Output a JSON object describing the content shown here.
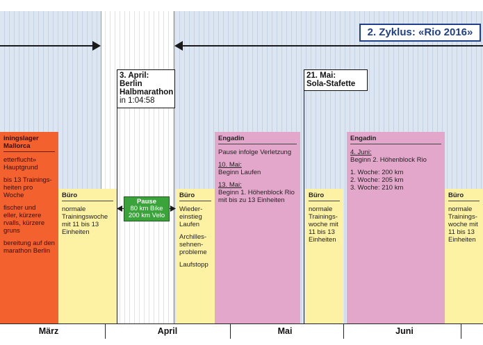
{
  "cycle_label": "2. Zyklus: «Rio 2016»",
  "events": {
    "berlin": {
      "l1": "3. April:",
      "l2": "Berlin",
      "l3": "Halbmarathon",
      "l4": "in 1:04:58"
    },
    "sola": {
      "l1": "21. Mai:",
      "l2": "Sola-Stafette"
    }
  },
  "bars": {
    "mallorca": {
      "title": "iningslager Mallorca",
      "lines": [
        "etterflucht»",
        "Hauptgrund",
        "bis 13 Trainings-",
        "heiten pro Woche",
        "fischer und",
        "eller, kürzere",
        "rvalls, kürzere",
        "gruns",
        "bereitung auf den",
        "marathon Berlin"
      ]
    },
    "buero1": {
      "title": "Büro",
      "text": [
        "normale",
        "Trainingswoche",
        "mit 11 bis 13",
        "Einheiten"
      ]
    },
    "pause": {
      "title": "Pause",
      "l1": "80 km Bike",
      "l2": "200 km Velo"
    },
    "buero2": {
      "title": "Büro",
      "text": [
        "Wieder-",
        "einstieg",
        "Laufen",
        "Archilles-",
        "sehnen-",
        "probleme",
        "Laufstopp"
      ]
    },
    "engadin1": {
      "title": "Engadin",
      "note": "Pause infolge Verletzung",
      "d1": "10. Mai:",
      "t1": "Beginn Laufen",
      "d2": "13. Mai:",
      "t2": [
        "Beginn 1. Höhenblock Rio",
        "mit bis zu 13 Einheiten"
      ]
    },
    "buero3": {
      "title": "Büro",
      "text": [
        "normale",
        "Trainings-",
        "woche mit",
        "11 bis 13",
        "Einheiten"
      ]
    },
    "engadin2": {
      "title": "Engadin",
      "d1": "4. Juni:",
      "t1": "Beginn 2. Höhenblock Rio",
      "weeks": [
        "1. Woche: 200 km",
        "2. Woche: 205 km",
        "3. Woche: 210 km"
      ]
    },
    "buero4": {
      "title": "Büro",
      "text": [
        "normale",
        "Trainings-",
        "woche mit",
        "11 bis 13",
        "Einheiten"
      ]
    }
  },
  "months": [
    "März",
    "April",
    "Mai",
    "Juni"
  ]
}
